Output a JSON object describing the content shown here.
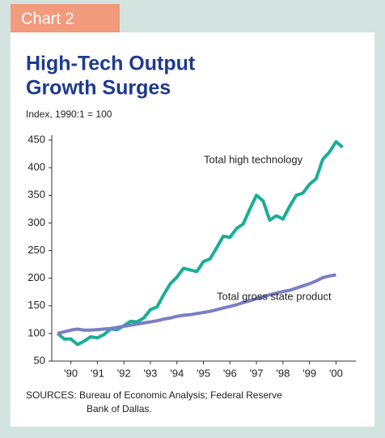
{
  "chart_data": {
    "type": "line",
    "tab": "Chart 2",
    "title": [
      "High-Tech Output",
      "Growth Surges"
    ],
    "subtitle": "Index, 1990:1 = 100",
    "source": [
      "SOURCES: Bureau of Economic Analysis; Federal Reserve",
      "Bank of Dallas."
    ],
    "xlim": [
      1989.78,
      2001.25
    ],
    "xticks": [
      {
        "value": 1990.5,
        "label": "'90"
      },
      {
        "value": 1991.5,
        "label": "'91"
      },
      {
        "value": 1992.5,
        "label": "'92"
      },
      {
        "value": 1993.5,
        "label": "'93"
      },
      {
        "value": 1994.5,
        "label": "'94"
      },
      {
        "value": 1995.5,
        "label": "'95"
      },
      {
        "value": 1996.5,
        "label": "'96"
      },
      {
        "value": 1997.5,
        "label": "'97"
      },
      {
        "value": 1998.5,
        "label": "'98"
      },
      {
        "value": 1999.5,
        "label": "'99"
      },
      {
        "value": 2000.5,
        "label": "'00"
      }
    ],
    "ylim": [
      50,
      450
    ],
    "yticks": [
      50,
      100,
      150,
      200,
      250,
      300,
      350,
      400,
      450
    ],
    "series": [
      {
        "name": "Total high technology",
        "color": "#1aae96",
        "x": [
          1990,
          1990.25,
          1990.5,
          1990.75,
          1991,
          1991.25,
          1991.5,
          1991.75,
          1992,
          1992.25,
          1992.5,
          1992.75,
          1993,
          1993.25,
          1993.5,
          1993.75,
          1994,
          1994.25,
          1994.5,
          1994.75,
          1995,
          1995.25,
          1995.5,
          1995.75,
          1996,
          1996.25,
          1996.5,
          1996.75,
          1997,
          1997.25,
          1997.5,
          1997.75,
          1998,
          1998.25,
          1998.5,
          1998.75,
          1999,
          1999.25,
          1999.5,
          1999.75,
          2000,
          2000.25,
          2000.5,
          2000.75
        ],
        "values": [
          100,
          90,
          90,
          80,
          86,
          94,
          92,
          98,
          108,
          107,
          114,
          122,
          121,
          128,
          143,
          148,
          170,
          190,
          202,
          218,
          215,
          212,
          230,
          235,
          255,
          276,
          274,
          290,
          298,
          325,
          350,
          340,
          305,
          313,
          307,
          330,
          350,
          354,
          370,
          380,
          415,
          428,
          447,
          437
        ]
      },
      {
        "name": "Total gross state product",
        "color": "#7a7fc4",
        "x": [
          1990,
          1990.25,
          1990.5,
          1990.75,
          1991,
          1991.25,
          1991.5,
          1991.75,
          1992,
          1992.25,
          1992.5,
          1992.75,
          1993,
          1993.25,
          1993.5,
          1993.75,
          1994,
          1994.25,
          1994.5,
          1994.75,
          1995,
          1995.25,
          1995.5,
          1995.75,
          1996,
          1996.25,
          1996.5,
          1996.75,
          1997,
          1997.25,
          1997.5,
          1997.75,
          1998,
          1998.25,
          1998.5,
          1998.75,
          1999,
          1999.25,
          1999.5,
          1999.75,
          2000,
          2000.25,
          2000.5
        ],
        "values": [
          100,
          103,
          106,
          108,
          106,
          106,
          107,
          108,
          109,
          111,
          113,
          115,
          117,
          119,
          121,
          123,
          126,
          128,
          131,
          133,
          134,
          136,
          138,
          140,
          143,
          146,
          149,
          152,
          156,
          159,
          163,
          166,
          170,
          173,
          176,
          178,
          182,
          186,
          190,
          195,
          201,
          204,
          206
        ]
      }
    ]
  }
}
